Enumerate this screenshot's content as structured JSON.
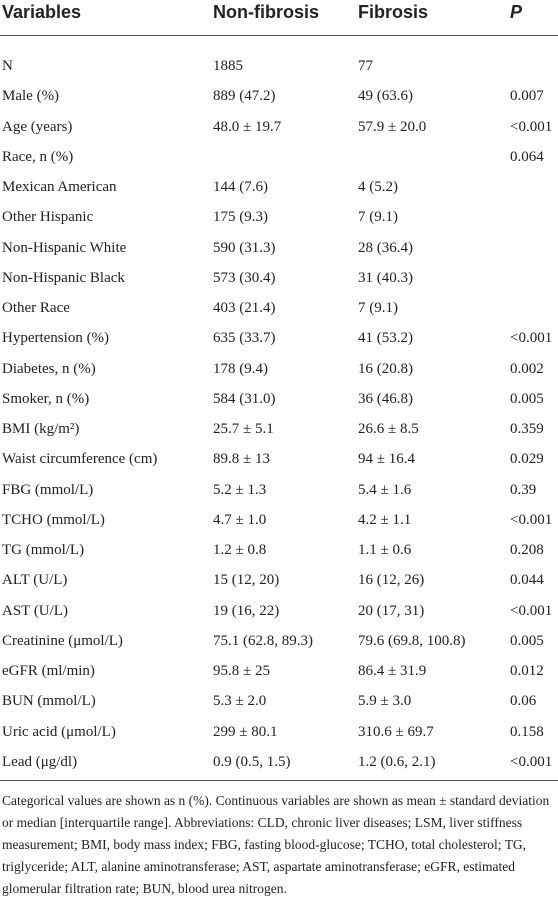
{
  "table": {
    "header": [
      "Variables",
      "Non-fibrosis",
      "Fibrosis",
      "P"
    ],
    "rows": [
      [
        "N",
        "1885",
        "77",
        null
      ],
      [
        "Male (%)",
        "889 (47.2)",
        "49 (63.6)",
        "0.007"
      ],
      [
        "Age (years)",
        "48.0 ± 19.7",
        "57.9 ± 20.0",
        "<0.001"
      ],
      [
        "Race, n (%)",
        null,
        null,
        "0.064"
      ],
      [
        "Mexican American",
        "144 (7.6)",
        "4 (5.2)",
        null
      ],
      [
        "Other Hispanic",
        "175 (9.3)",
        "7 (9.1)",
        null
      ],
      [
        "Non-Hispanic White",
        "590 (31.3)",
        "28 (36.4)",
        null
      ],
      [
        "Non-Hispanic Black",
        "573 (30.4)",
        "31 (40.3)",
        null
      ],
      [
        "Other Race",
        "403 (21.4)",
        "7 (9.1)",
        null
      ],
      [
        "Hypertension (%)",
        "635 (33.7)",
        "41 (53.2)",
        "<0.001"
      ],
      [
        "Diabetes, n (%)",
        "178 (9.4)",
        "16 (20.8)",
        "0.002"
      ],
      [
        "Smoker, n (%)",
        "584 (31.0)",
        "36 (46.8)",
        "0.005"
      ],
      [
        "BMI (kg/m²)",
        "25.7 ± 5.1",
        "26.6 ± 8.5",
        "0.359"
      ],
      [
        "Waist circumference (cm)",
        "89.8 ± 13",
        "94 ± 16.4",
        "0.029"
      ],
      [
        "FBG (mmol/L)",
        "5.2 ± 1.3",
        "5.4 ± 1.6",
        "0.39"
      ],
      [
        "TCHO (mmol/L)",
        "4.7 ± 1.0",
        "4.2 ± 1.1",
        "<0.001"
      ],
      [
        "TG (mmol/L)",
        "1.2 ± 0.8",
        "1.1 ± 0.6",
        "0.208"
      ],
      [
        "ALT (U/L)",
        "15 (12, 20)",
        "16 (12, 26)",
        "0.044"
      ],
      [
        "AST (U/L)",
        "19 (16, 22)",
        "20 (17, 31)",
        "<0.001"
      ],
      [
        "Creatinine (μmol/L)",
        "75.1 (62.8, 89.3)",
        "79.6 (69.8, 100.8)",
        "0.005"
      ],
      [
        "eGFR (ml/min)",
        "95.8 ± 25",
        "86.4 ± 31.9",
        "0.012"
      ],
      [
        "BUN (mmol/L)",
        "5.3 ± 2.0",
        "5.9 ± 3.0",
        "0.06"
      ],
      [
        "Uric acid (μmol/L)",
        "299 ± 80.1",
        "310.6 ± 69.7",
        "0.158"
      ],
      [
        "Lead (μg/dl)",
        "0.9 (0.5, 1.5)",
        "1.2 (0.6, 2.1)",
        "<0.001"
      ]
    ],
    "footnote": "Categorical values are shown as n (%). Continuous variables are shown as mean ± standard deviation or median [interquartile range]. Abbreviations: CLD, chronic liver diseases; LSM, liver stiffness measurement; BMI, body mass index; FBG, fasting blood-glucose; TCHO, total cholesterol; TG, triglyceride; ALT, alanine aminotransferase; AST, aspartate aminotransferase; eGFR, estimated glomerular filtration rate; BUN, blood urea nitrogen."
  }
}
